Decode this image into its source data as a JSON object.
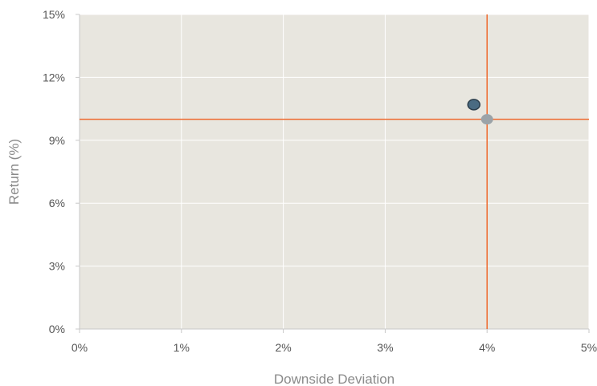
{
  "chart_data": {
    "type": "scatter",
    "title": "",
    "xlabel": "Downside Deviation",
    "ylabel": "Return (%)",
    "xlim": [
      0,
      5
    ],
    "ylim": [
      0,
      15
    ],
    "x_ticks": [
      "0%",
      "1%",
      "2%",
      "3%",
      "4%",
      "5%"
    ],
    "y_ticks": [
      "0%",
      "3%",
      "6%",
      "9%",
      "12%",
      "15%"
    ],
    "grid": true,
    "legend": "none",
    "background_color": "#e8e6df",
    "grid_color": "#ffffff",
    "reference_line_color": "#ee6a2f",
    "reference_lines": {
      "x": 4.0,
      "y": 10.0
    },
    "series": [
      {
        "x": [
          3.87
        ],
        "y": [
          10.7
        ],
        "color": "#4a6b82"
      },
      {
        "x": [
          4.0
        ],
        "y": [
          10.0
        ],
        "color": "#9ba3a8"
      }
    ]
  }
}
